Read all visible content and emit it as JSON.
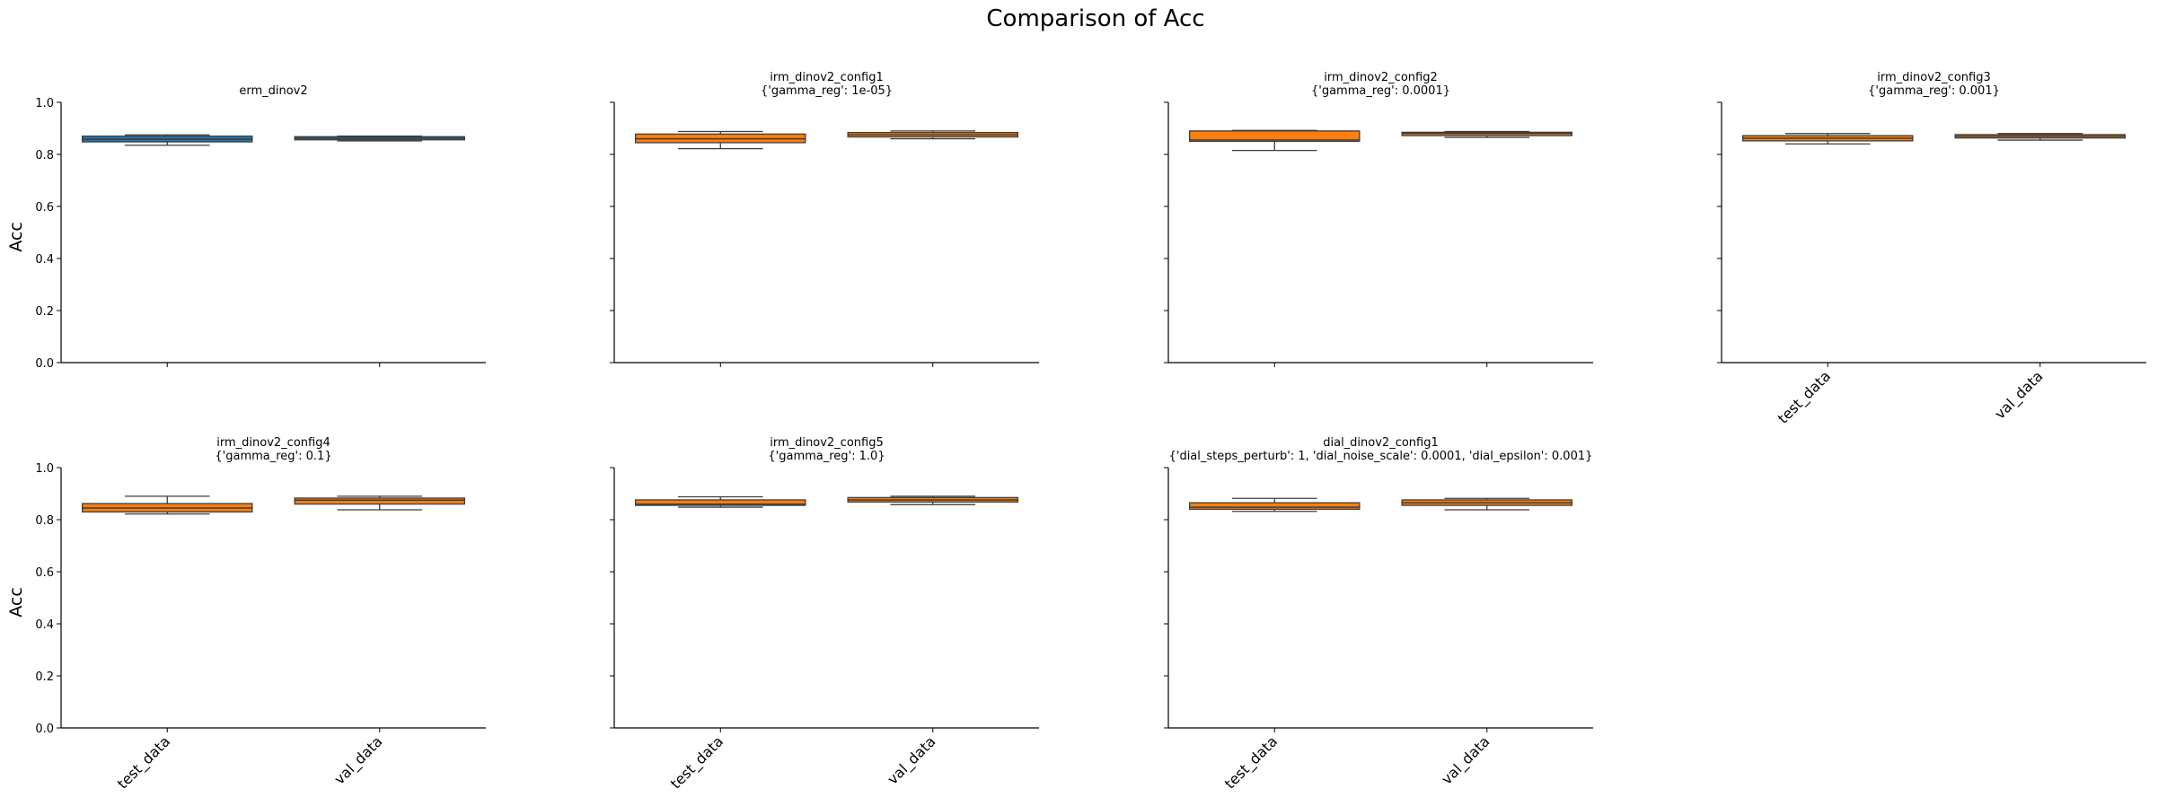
{
  "figure": {
    "title": "Comparison of Acc",
    "ylabel": "Acc"
  },
  "colors": {
    "erm": "#1f77b4",
    "other": "#ff7f0e",
    "edge": "#3d3d3d",
    "axis": "#000000"
  },
  "chart_data": [
    {
      "type": "box",
      "title_line1": "erm_dinov2",
      "title_line2": "",
      "categories": [
        "test_data",
        "val_data"
      ],
      "ylim": [
        0,
        1.0
      ],
      "yticks": [
        "0.0",
        "0.2",
        "0.4",
        "0.6",
        "0.8",
        "1.0"
      ],
      "show_xticklabels": false,
      "show_yticklabels": true,
      "color": "#1f77b4",
      "boxes": [
        {
          "category": "test_data",
          "min": 0.835,
          "q1": 0.848,
          "median": 0.858,
          "q3": 0.87,
          "max": 0.875
        },
        {
          "category": "val_data",
          "min": 0.852,
          "q1": 0.856,
          "median": 0.862,
          "q3": 0.868,
          "max": 0.87
        }
      ]
    },
    {
      "type": "box",
      "title_line1": "irm_dinov2_config1",
      "title_line2": "{'gamma_reg': 1e-05}",
      "categories": [
        "test_data",
        "val_data"
      ],
      "ylim": [
        0,
        1.0
      ],
      "yticks": [
        "0.0",
        "0.2",
        "0.4",
        "0.6",
        "0.8",
        "1.0"
      ],
      "show_xticklabels": false,
      "show_yticklabels": false,
      "color": "#ff7f0e",
      "boxes": [
        {
          "category": "test_data",
          "min": 0.822,
          "q1": 0.845,
          "median": 0.86,
          "q3": 0.878,
          "max": 0.888
        },
        {
          "category": "val_data",
          "min": 0.86,
          "q1": 0.867,
          "median": 0.875,
          "q3": 0.884,
          "max": 0.89
        }
      ]
    },
    {
      "type": "box",
      "title_line1": "irm_dinov2_config2",
      "title_line2": "{'gamma_reg': 0.0001}",
      "categories": [
        "test_data",
        "val_data"
      ],
      "ylim": [
        0,
        1.0
      ],
      "yticks": [
        "0.0",
        "0.2",
        "0.4",
        "0.6",
        "0.8",
        "1.0"
      ],
      "show_xticklabels": false,
      "show_yticklabels": false,
      "color": "#ff7f0e",
      "boxes": [
        {
          "category": "test_data",
          "min": 0.815,
          "q1": 0.85,
          "median": 0.855,
          "q3": 0.89,
          "max": 0.892
        },
        {
          "category": "val_data",
          "min": 0.865,
          "q1": 0.872,
          "median": 0.88,
          "q3": 0.885,
          "max": 0.888
        }
      ]
    },
    {
      "type": "box",
      "title_line1": "irm_dinov2_config3",
      "title_line2": "{'gamma_reg': 0.001}",
      "categories": [
        "test_data",
        "val_data"
      ],
      "ylim": [
        0,
        1.0
      ],
      "yticks": [
        "0.0",
        "0.2",
        "0.4",
        "0.6",
        "0.8",
        "1.0"
      ],
      "show_xticklabels": true,
      "show_yticklabels": false,
      "color": "#ff7f0e",
      "boxes": [
        {
          "category": "test_data",
          "min": 0.84,
          "q1": 0.852,
          "median": 0.862,
          "q3": 0.872,
          "max": 0.88
        },
        {
          "category": "val_data",
          "min": 0.855,
          "q1": 0.863,
          "median": 0.87,
          "q3": 0.876,
          "max": 0.88
        }
      ]
    },
    {
      "type": "box",
      "title_line1": "irm_dinov2_config4",
      "title_line2": "{'gamma_reg': 0.1}",
      "categories": [
        "test_data",
        "val_data"
      ],
      "ylim": [
        0,
        1.0
      ],
      "yticks": [
        "0.0",
        "0.2",
        "0.4",
        "0.6",
        "0.8",
        "1.0"
      ],
      "show_xticklabels": true,
      "show_yticklabels": true,
      "color": "#ff7f0e",
      "boxes": [
        {
          "category": "test_data",
          "min": 0.822,
          "q1": 0.83,
          "median": 0.845,
          "q3": 0.862,
          "max": 0.89
        },
        {
          "category": "val_data",
          "min": 0.838,
          "q1": 0.86,
          "median": 0.875,
          "q3": 0.883,
          "max": 0.89
        }
      ]
    },
    {
      "type": "box",
      "title_line1": "irm_dinov2_config5",
      "title_line2": "{'gamma_reg': 1.0}",
      "categories": [
        "test_data",
        "val_data"
      ],
      "ylim": [
        0,
        1.0
      ],
      "yticks": [
        "0.0",
        "0.2",
        "0.4",
        "0.6",
        "0.8",
        "1.0"
      ],
      "show_xticklabels": true,
      "show_yticklabels": false,
      "color": "#ff7f0e",
      "boxes": [
        {
          "category": "test_data",
          "min": 0.848,
          "q1": 0.855,
          "median": 0.86,
          "q3": 0.876,
          "max": 0.888
        },
        {
          "category": "val_data",
          "min": 0.858,
          "q1": 0.868,
          "median": 0.876,
          "q3": 0.885,
          "max": 0.89
        }
      ]
    },
    {
      "type": "box",
      "title_line1": "dial_dinov2_config1",
      "title_line2": "{'dial_steps_perturb': 1, 'dial_noise_scale': 0.0001, 'dial_epsilon': 0.001}",
      "categories": [
        "test_data",
        "val_data"
      ],
      "ylim": [
        0,
        1.0
      ],
      "yticks": [
        "0.0",
        "0.2",
        "0.4",
        "0.6",
        "0.8",
        "1.0"
      ],
      "show_xticklabels": true,
      "show_yticklabels": false,
      "color": "#ff7f0e",
      "boxes": [
        {
          "category": "test_data",
          "min": 0.832,
          "q1": 0.84,
          "median": 0.848,
          "q3": 0.865,
          "max": 0.882
        },
        {
          "category": "val_data",
          "min": 0.838,
          "q1": 0.855,
          "median": 0.865,
          "q3": 0.876,
          "max": 0.882
        }
      ]
    }
  ]
}
